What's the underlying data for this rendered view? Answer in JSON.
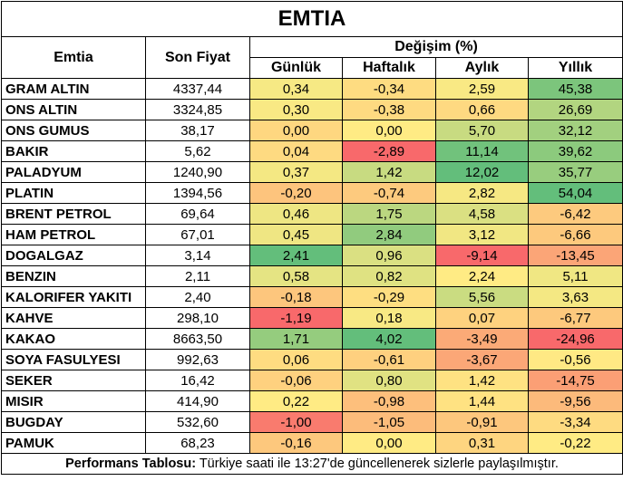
{
  "title": "EMTIA",
  "headers": {
    "name": "Emtia",
    "price": "Son Fiyat",
    "change_group": "Değişim (%)",
    "daily": "Günlük",
    "weekly": "Haftalık",
    "monthly": "Aylık",
    "yearly": "Yıllık"
  },
  "rows": [
    {
      "name": "GRAM ALTIN",
      "price": "4337,44",
      "daily": "0,34",
      "weekly": "-0,34",
      "monthly": "2,59",
      "yearly": "45,38"
    },
    {
      "name": "ONS ALTIN",
      "price": "3324,85",
      "daily": "0,30",
      "weekly": "-0,38",
      "monthly": "0,66",
      "yearly": "26,69"
    },
    {
      "name": "ONS GUMUS",
      "price": "38,17",
      "daily": "0,00",
      "weekly": "0,00",
      "monthly": "5,70",
      "yearly": "32,12"
    },
    {
      "name": "BAKIR",
      "price": "5,62",
      "daily": "0,04",
      "weekly": "-2,89",
      "monthly": "11,14",
      "yearly": "39,62"
    },
    {
      "name": "PALADYUM",
      "price": "1240,90",
      "daily": "0,37",
      "weekly": "1,42",
      "monthly": "12,02",
      "yearly": "35,77"
    },
    {
      "name": "PLATIN",
      "price": "1394,56",
      "daily": "-0,20",
      "weekly": "-0,74",
      "monthly": "2,82",
      "yearly": "54,04"
    },
    {
      "name": "BRENT PETROL",
      "price": "69,64",
      "daily": "0,46",
      "weekly": "1,75",
      "monthly": "4,58",
      "yearly": "-6,42"
    },
    {
      "name": "HAM PETROL",
      "price": "67,01",
      "daily": "0,45",
      "weekly": "2,84",
      "monthly": "3,12",
      "yearly": "-6,66"
    },
    {
      "name": "DOGALGAZ",
      "price": "3,14",
      "daily": "2,41",
      "weekly": "0,96",
      "monthly": "-9,14",
      "yearly": "-13,45"
    },
    {
      "name": "BENZIN",
      "price": "2,11",
      "daily": "0,58",
      "weekly": "0,82",
      "monthly": "2,24",
      "yearly": "5,11"
    },
    {
      "name": "KALORIFER YAKITI",
      "price": "2,40",
      "daily": "-0,18",
      "weekly": "-0,29",
      "monthly": "5,56",
      "yearly": "3,63"
    },
    {
      "name": "KAHVE",
      "price": "298,10",
      "daily": "-1,19",
      "weekly": "0,18",
      "monthly": "0,07",
      "yearly": "-6,77"
    },
    {
      "name": "KAKAO",
      "price": "8663,50",
      "daily": "1,71",
      "weekly": "4,02",
      "monthly": "-3,49",
      "yearly": "-24,96"
    },
    {
      "name": "SOYA FASULYESI",
      "price": "992,63",
      "daily": "0,06",
      "weekly": "-0,61",
      "monthly": "-3,67",
      "yearly": "-0,56"
    },
    {
      "name": "SEKER",
      "price": "16,42",
      "daily": "-0,06",
      "weekly": "0,80",
      "monthly": "1,42",
      "yearly": "-14,75"
    },
    {
      "name": "MISIR",
      "price": "414,90",
      "daily": "0,22",
      "weekly": "-0,98",
      "monthly": "1,44",
      "yearly": "-9,56"
    },
    {
      "name": "BUGDAY",
      "price": "532,60",
      "daily": "-1,00",
      "weekly": "-1,05",
      "monthly": "-0,91",
      "yearly": "-3,34"
    },
    {
      "name": "PAMUK",
      "price": "68,23",
      "daily": "-0,16",
      "weekly": "0,00",
      "monthly": "0,31",
      "yearly": "-0,22"
    }
  ],
  "colors": {
    "red": "#f8696b",
    "yellow": "#ffeb84",
    "green": "#63be7b"
  },
  "footer": {
    "bold": "Performans Tablosu:",
    "text": " Türkiye saati ile 13:27'de güncellenerek sizlerle paylaşılmıştır."
  }
}
